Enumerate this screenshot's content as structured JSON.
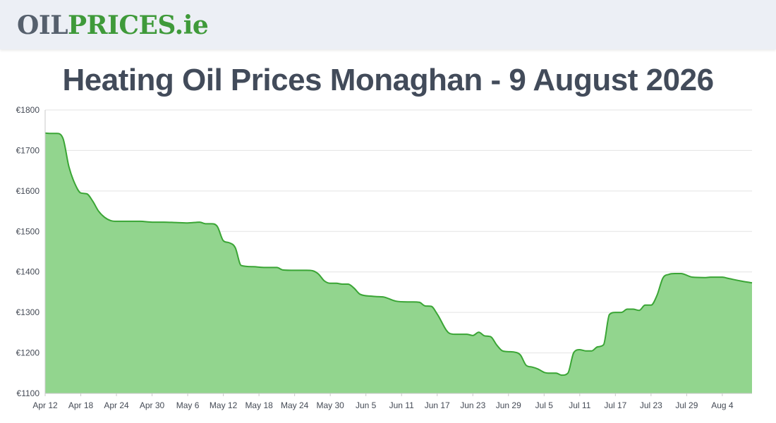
{
  "header": {
    "logo_part1": "OIL",
    "logo_part2": "PRICES",
    "logo_part3": ".ie"
  },
  "page": {
    "title": "Heating Oil Prices Monaghan - 9 August 2026"
  },
  "colors": {
    "area_fill": "#92d58e",
    "line": "#3aa535",
    "grid": "#e3e3e3",
    "axis": "#c9c9c9"
  },
  "chart_data": {
    "type": "area",
    "title": "",
    "xlabel": "",
    "ylabel": "",
    "ylim": [
      1100,
      1800
    ],
    "yticks": [
      1100,
      1200,
      1300,
      1400,
      1500,
      1600,
      1700,
      1800
    ],
    "ytick_labels": [
      "€1100",
      "€1200",
      "€1300",
      "€1400",
      "€1500",
      "€1600",
      "€1700",
      "€1800"
    ],
    "xlim": [
      "2026-04-12",
      "2026-08-09"
    ],
    "xticks": [
      "2026-04-12",
      "2026-04-18",
      "2026-04-24",
      "2026-04-30",
      "2026-05-06",
      "2026-05-12",
      "2026-05-18",
      "2026-05-24",
      "2026-05-30",
      "2026-06-05",
      "2026-06-11",
      "2026-06-17",
      "2026-06-23",
      "2026-06-29",
      "2026-07-05",
      "2026-07-11",
      "2026-07-17",
      "2026-07-23",
      "2026-07-29",
      "2026-08-04"
    ],
    "xtick_labels": [
      "Apr 12",
      "Apr 18",
      "Apr 24",
      "Apr 30",
      "May 6",
      "May 12",
      "May 18",
      "May 24",
      "May 30",
      "Jun 5",
      "Jun 11",
      "Jun 17",
      "Jun 23",
      "Jun 29",
      "Jul 5",
      "Jul 11",
      "Jul 17",
      "Jul 23",
      "Jul 29",
      "Aug 4"
    ],
    "grid": true,
    "legend": "none",
    "series": [
      {
        "x": [
          "2026-04-12",
          "2026-04-13",
          "2026-04-14",
          "2026-04-15",
          "2026-04-16",
          "2026-04-17",
          "2026-04-18",
          "2026-04-19",
          "2026-04-20",
          "2026-04-21",
          "2026-04-22",
          "2026-04-23",
          "2026-04-24",
          "2026-04-26",
          "2026-04-28",
          "2026-04-30",
          "2026-05-02",
          "2026-05-04",
          "2026-05-06",
          "2026-05-08",
          "2026-05-09",
          "2026-05-10",
          "2026-05-11",
          "2026-05-12",
          "2026-05-13",
          "2026-05-14",
          "2026-05-15",
          "2026-05-17",
          "2026-05-19",
          "2026-05-21",
          "2026-05-22",
          "2026-05-24",
          "2026-05-26",
          "2026-05-27",
          "2026-05-28",
          "2026-05-29",
          "2026-05-30",
          "2026-05-31",
          "2026-06-01",
          "2026-06-02",
          "2026-06-03",
          "2026-06-04",
          "2026-06-06",
          "2026-06-07",
          "2026-06-08",
          "2026-06-10",
          "2026-06-12",
          "2026-06-13",
          "2026-06-14",
          "2026-06-15",
          "2026-06-16",
          "2026-06-17",
          "2026-06-19",
          "2026-06-20",
          "2026-06-21",
          "2026-06-22",
          "2026-06-23",
          "2026-06-24",
          "2026-06-25",
          "2026-06-26",
          "2026-06-27",
          "2026-06-28",
          "2026-06-29",
          "2026-06-30",
          "2026-07-01",
          "2026-07-02",
          "2026-07-03",
          "2026-07-04",
          "2026-07-05",
          "2026-07-06",
          "2026-07-07",
          "2026-07-08",
          "2026-07-09",
          "2026-07-10",
          "2026-07-11",
          "2026-07-12",
          "2026-07-13",
          "2026-07-14",
          "2026-07-15",
          "2026-07-16",
          "2026-07-17",
          "2026-07-18",
          "2026-07-19",
          "2026-07-20",
          "2026-07-21",
          "2026-07-22",
          "2026-07-23",
          "2026-07-24",
          "2026-07-25",
          "2026-07-26",
          "2026-07-27",
          "2026-07-28",
          "2026-07-30",
          "2026-08-01",
          "2026-08-02",
          "2026-08-03",
          "2026-08-04",
          "2026-08-05",
          "2026-08-07",
          "2026-08-09"
        ],
        "y": [
          1743,
          1742,
          1742,
          1730,
          1660,
          1618,
          1595,
          1593,
          1575,
          1550,
          1535,
          1527,
          1525,
          1525,
          1525,
          1523,
          1523,
          1522,
          1521,
          1523,
          1519,
          1519,
          1512,
          1477,
          1472,
          1460,
          1416,
          1413,
          1411,
          1411,
          1405,
          1404,
          1404,
          1403,
          1395,
          1378,
          1372,
          1372,
          1370,
          1370,
          1360,
          1345,
          1340,
          1339,
          1338,
          1328,
          1326,
          1326,
          1325,
          1316,
          1315,
          1296,
          1249,
          1246,
          1246,
          1246,
          1243,
          1251,
          1242,
          1240,
          1220,
          1205,
          1203,
          1202,
          1195,
          1169,
          1165,
          1160,
          1152,
          1150,
          1150,
          1145,
          1150,
          1201,
          1208,
          1205,
          1205,
          1215,
          1220,
          1295,
          1300,
          1300,
          1308,
          1308,
          1305,
          1318,
          1318,
          1342,
          1385,
          1394,
          1396,
          1396,
          1387,
          1386,
          1387,
          1387,
          1387,
          1384,
          1378,
          1373
        ]
      }
    ]
  }
}
